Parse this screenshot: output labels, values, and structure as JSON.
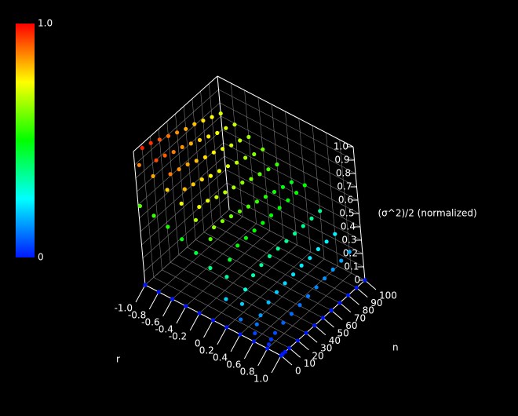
{
  "chart_data": {
    "type": "scatter3d",
    "zlabel": "(σ^2)/2 (normalized)",
    "xlabel": "n",
    "rlabel": "r",
    "x": [
      0,
      2,
      5,
      10,
      20,
      30,
      40,
      50,
      60,
      70,
      80,
      90,
      100
    ],
    "xlim": [
      0,
      100
    ],
    "xticks": [
      0,
      10,
      20,
      30,
      40,
      50,
      60,
      70,
      80,
      90,
      100
    ],
    "rlim": [
      -1,
      1
    ],
    "rticks": [
      {
        "value": -1,
        "label": "-1.0"
      },
      -0.8,
      -0.6,
      -0.4,
      -0.2,
      0,
      0.2,
      0.4,
      0.6,
      0.8,
      {
        "value": 1,
        "label": "1.0"
      }
    ],
    "zlim": [
      0,
      1
    ],
    "zticks": [
      0,
      0.1,
      0.2,
      0.3,
      0.4,
      0.5,
      0.6,
      0.7,
      0.8,
      0.9,
      {
        "value": 1,
        "label": "1.0"
      }
    ],
    "clim": [
      0,
      1
    ],
    "cticks": [
      0,
      {
        "value": 1,
        "label": "1.0"
      }
    ],
    "colormap": [
      "#0018ff",
      "#00ffff",
      "#00ff00",
      "#ffff00",
      "#ff0000"
    ],
    "grid": true,
    "series": [
      {
        "r": -1.0,
        "values": [
          0,
          0.58,
          0.87,
          0.97,
          0.95,
          0.92,
          0.89,
          0.86,
          0.83,
          0.81,
          0.78,
          0.75,
          0.72
        ]
      },
      {
        "r": -0.8,
        "values": [
          0,
          0.56,
          0.84,
          0.93,
          0.91,
          0.88,
          0.86,
          0.83,
          0.8,
          0.77,
          0.74,
          0.72,
          0.69
        ]
      },
      {
        "r": -0.6,
        "values": [
          0,
          0.53,
          0.79,
          0.88,
          0.86,
          0.84,
          0.81,
          0.78,
          0.76,
          0.73,
          0.7,
          0.68,
          0.65
        ]
      },
      {
        "r": -0.4,
        "values": [
          0,
          0.49,
          0.74,
          0.82,
          0.8,
          0.78,
          0.75,
          0.73,
          0.71,
          0.68,
          0.66,
          0.63,
          0.61
        ]
      },
      {
        "r": -0.2,
        "values": [
          0,
          0.44,
          0.67,
          0.74,
          0.73,
          0.7,
          0.68,
          0.66,
          0.64,
          0.61,
          0.59,
          0.57,
          0.55
        ]
      },
      {
        "r": 0,
        "values": [
          0,
          0.38,
          0.58,
          0.64,
          0.63,
          0.61,
          0.59,
          0.57,
          0.55,
          0.53,
          0.51,
          0.49,
          0.47
        ]
      },
      {
        "r": 0.2,
        "values": [
          0,
          0.2,
          0.35,
          0.45,
          0.5,
          0.5,
          0.5,
          0.5,
          0.5,
          0.5,
          0.5,
          0.5,
          0.5
        ]
      },
      {
        "r": 0.4,
        "values": [
          0,
          0.1,
          0.2,
          0.28,
          0.33,
          0.35,
          0.36,
          0.36,
          0.36,
          0.36,
          0.36,
          0.36,
          0.36
        ]
      },
      {
        "r": 0.6,
        "values": [
          0,
          0.05,
          0.1,
          0.14,
          0.18,
          0.2,
          0.21,
          0.22,
          0.23,
          0.23,
          0.24,
          0.24,
          0.24
        ]
      },
      {
        "r": 0.8,
        "values": [
          0,
          0.02,
          0.04,
          0.06,
          0.08,
          0.09,
          0.1,
          0.11,
          0.12,
          0.13,
          0.14,
          0.15,
          0.16
        ]
      },
      {
        "r": 1.0,
        "values": [
          0,
          0,
          0,
          0,
          0,
          0,
          0,
          0,
          0,
          0,
          0,
          0,
          0
        ]
      }
    ]
  }
}
